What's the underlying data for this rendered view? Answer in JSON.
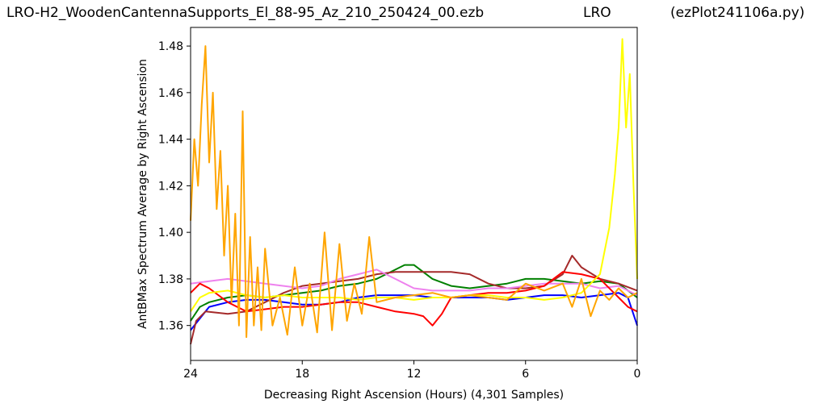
{
  "header": {
    "file_name": "LRO-H2_WoodenCantennaSupports_El_88-95_Az_210_250424_00.ezb",
    "site": "LRO",
    "script": "(ezPlot241106a.py)"
  },
  "chart_data": {
    "type": "line",
    "title": "",
    "xlabel": "Decreasing Right Ascension (Hours) (4,301 Samples)",
    "ylabel": "AntBMax Spectrum Average by Right Ascension",
    "xlim": [
      24,
      0
    ],
    "ylim": [
      1.345,
      1.488
    ],
    "x_ticks": [
      24,
      18,
      12,
      6,
      0
    ],
    "y_ticks": [
      1.36,
      1.38,
      1.4,
      1.42,
      1.44,
      1.46,
      1.48
    ],
    "x_tick_labels": [
      "24",
      "18",
      "12",
      "6",
      "0"
    ],
    "y_tick_labels": [
      "1.36",
      "1.38",
      "1.40",
      "1.42",
      "1.44",
      "1.46",
      "1.48"
    ],
    "grid": false,
    "series": [
      {
        "color": "#0000ff",
        "x": [
          24,
          23.5,
          23,
          22,
          21,
          20,
          19,
          18,
          17,
          16,
          15,
          14,
          13,
          12,
          11,
          10,
          9,
          8,
          7,
          6,
          5,
          4,
          3,
          2,
          1,
          0.5,
          0
        ],
        "y": [
          1.358,
          1.363,
          1.368,
          1.37,
          1.371,
          1.371,
          1.37,
          1.369,
          1.369,
          1.37,
          1.372,
          1.373,
          1.373,
          1.373,
          1.372,
          1.372,
          1.372,
          1.372,
          1.371,
          1.372,
          1.373,
          1.373,
          1.372,
          1.373,
          1.374,
          1.372,
          1.36
        ]
      },
      {
        "color": "#008000",
        "x": [
          24,
          23.5,
          23,
          22,
          21,
          20,
          19,
          18,
          17,
          16,
          15,
          14,
          13,
          12.5,
          12,
          11,
          10,
          9,
          8,
          7,
          6,
          5,
          4,
          3,
          2,
          1,
          0
        ],
        "y": [
          1.362,
          1.368,
          1.37,
          1.372,
          1.373,
          1.372,
          1.373,
          1.374,
          1.375,
          1.377,
          1.378,
          1.38,
          1.384,
          1.386,
          1.386,
          1.38,
          1.377,
          1.376,
          1.377,
          1.378,
          1.38,
          1.38,
          1.379,
          1.378,
          1.379,
          1.378,
          1.372
        ]
      },
      {
        "color": "#a52a2a",
        "x": [
          24,
          23.7,
          23.2,
          22,
          21,
          20,
          19,
          18,
          17,
          16,
          15,
          14,
          13,
          12,
          11,
          10,
          9,
          8,
          7,
          6,
          5,
          4,
          3.5,
          3,
          2,
          1,
          0
        ],
        "y": [
          1.352,
          1.362,
          1.366,
          1.365,
          1.366,
          1.37,
          1.374,
          1.377,
          1.378,
          1.379,
          1.38,
          1.382,
          1.383,
          1.383,
          1.383,
          1.383,
          1.382,
          1.378,
          1.376,
          1.376,
          1.377,
          1.382,
          1.39,
          1.385,
          1.38,
          1.378,
          1.375
        ]
      },
      {
        "color": "#ee82ee",
        "x": [
          24,
          23,
          22,
          21,
          20,
          19,
          18,
          17,
          16,
          15,
          14,
          13,
          12,
          11,
          10,
          9,
          8,
          7,
          6,
          5,
          4,
          3,
          2,
          1,
          0
        ],
        "y": [
          1.378,
          1.379,
          1.38,
          1.379,
          1.378,
          1.377,
          1.376,
          1.377,
          1.38,
          1.382,
          1.384,
          1.38,
          1.376,
          1.375,
          1.375,
          1.375,
          1.376,
          1.376,
          1.377,
          1.378,
          1.378,
          1.378,
          1.376,
          1.377,
          1.373
        ]
      },
      {
        "color": "#ff0000",
        "x": [
          24,
          23.5,
          23,
          22,
          21,
          20,
          19,
          18,
          17,
          16,
          15,
          14,
          13,
          12,
          11.5,
          11,
          10.5,
          10,
          9,
          8,
          7,
          6,
          5,
          4,
          3,
          2,
          1,
          0.5,
          0
        ],
        "y": [
          1.374,
          1.378,
          1.376,
          1.37,
          1.366,
          1.367,
          1.368,
          1.368,
          1.369,
          1.37,
          1.37,
          1.368,
          1.366,
          1.365,
          1.364,
          1.36,
          1.365,
          1.372,
          1.373,
          1.374,
          1.374,
          1.375,
          1.377,
          1.383,
          1.382,
          1.38,
          1.372,
          1.368,
          1.366
        ]
      },
      {
        "color": "#ffff00",
        "x": [
          24,
          23.5,
          23,
          22,
          21,
          20,
          19,
          18,
          17,
          16,
          15,
          14,
          13,
          12,
          11,
          10,
          9,
          8,
          7,
          6,
          5,
          4,
          3,
          2.5,
          2,
          1.5,
          1.2,
          1.0,
          0.8,
          0.6,
          0.4,
          0.2,
          0
        ],
        "y": [
          1.366,
          1.372,
          1.374,
          1.375,
          1.373,
          1.372,
          1.373,
          1.372,
          1.372,
          1.372,
          1.371,
          1.372,
          1.372,
          1.371,
          1.372,
          1.372,
          1.373,
          1.373,
          1.372,
          1.372,
          1.371,
          1.372,
          1.374,
          1.378,
          1.382,
          1.402,
          1.425,
          1.445,
          1.483,
          1.445,
          1.468,
          1.42,
          1.38
        ]
      },
      {
        "color": "#ffa500",
        "x": [
          24,
          23.8,
          23.6,
          23.4,
          23.2,
          23.0,
          22.8,
          22.6,
          22.4,
          22.2,
          22.0,
          21.8,
          21.6,
          21.4,
          21.2,
          21.0,
          20.8,
          20.6,
          20.4,
          20.2,
          20.0,
          19.6,
          19.2,
          18.8,
          18.4,
          18.0,
          17.6,
          17.2,
          16.8,
          16.4,
          16.0,
          15.6,
          15.2,
          14.8,
          14.4,
          14.0,
          13.0,
          12.0,
          11.0,
          10.0,
          9.0,
          8.0,
          7.0,
          6.0,
          5.0,
          4.0,
          3.5,
          3.0,
          2.5,
          2.0,
          1.5,
          1.0,
          0.5,
          0
        ],
        "y": [
          1.405,
          1.44,
          1.42,
          1.455,
          1.48,
          1.43,
          1.46,
          1.41,
          1.435,
          1.39,
          1.42,
          1.37,
          1.408,
          1.36,
          1.452,
          1.355,
          1.398,
          1.36,
          1.385,
          1.358,
          1.393,
          1.36,
          1.372,
          1.356,
          1.385,
          1.36,
          1.378,
          1.357,
          1.4,
          1.358,
          1.395,
          1.362,
          1.378,
          1.365,
          1.398,
          1.37,
          1.372,
          1.373,
          1.374,
          1.372,
          1.373,
          1.372,
          1.371,
          1.378,
          1.375,
          1.378,
          1.368,
          1.38,
          1.364,
          1.375,
          1.371,
          1.376,
          1.372,
          1.374
        ]
      }
    ]
  }
}
